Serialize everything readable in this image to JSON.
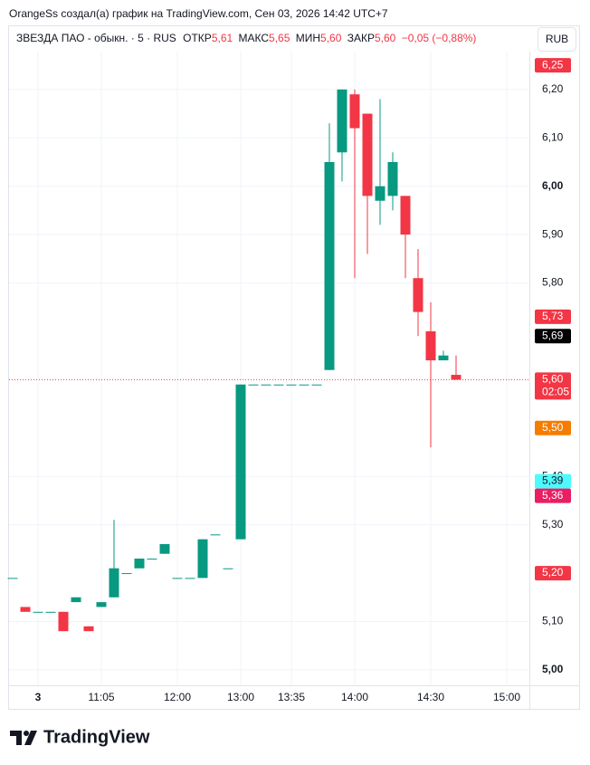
{
  "header": {
    "text": "OrangeSs создал(а) график на TradingView.com, Сен 03, 2026 14:42 UTC+7"
  },
  "legend": {
    "symbol": "ЗВЕЗДА ПАО - обыкн. · 5 · RUS",
    "open_label": "ОТКР",
    "open": "5,61",
    "high_label": "МАКС",
    "high": "5,65",
    "low_label": "МИН",
    "low": "5,60",
    "close_label": "ЗАКР",
    "close": "5,60",
    "change": "−0,05 (−0,88%)"
  },
  "currency": "RUB",
  "footer": {
    "logo": "TradingView"
  },
  "chart_data": {
    "type": "candlestick",
    "up_color": "#089981",
    "down_color": "#f23645",
    "open": [
      5.19,
      5.13,
      5.12,
      5.12,
      5.12,
      5.14,
      5.09,
      5.13,
      5.15,
      5.2,
      5.21,
      5.23,
      5.24,
      5.19,
      5.19,
      5.19,
      5.28,
      5.21,
      5.27,
      5.59,
      5.59,
      5.59,
      5.59,
      5.59,
      5.59,
      5.62,
      6.07,
      6.19,
      6.15,
      5.97,
      5.98,
      5.98,
      5.81,
      5.7,
      5.64,
      5.61
    ],
    "high": [
      5.19,
      5.13,
      5.12,
      5.12,
      5.12,
      5.15,
      5.09,
      5.14,
      5.31,
      5.2,
      5.23,
      5.23,
      5.26,
      5.19,
      5.19,
      5.27,
      5.28,
      5.21,
      5.59,
      5.59,
      5.59,
      5.59,
      5.59,
      5.59,
      5.59,
      6.13,
      6.2,
      6.2,
      6.15,
      6.18,
      6.07,
      5.98,
      5.87,
      5.76,
      5.66,
      5.65
    ],
    "low": [
      5.19,
      5.12,
      5.12,
      5.12,
      5.08,
      5.14,
      5.08,
      5.13,
      5.15,
      5.2,
      5.21,
      5.23,
      5.24,
      5.19,
      5.19,
      5.19,
      5.28,
      5.21,
      5.27,
      5.59,
      5.59,
      5.59,
      5.59,
      5.59,
      5.59,
      5.62,
      6.01,
      5.81,
      5.86,
      5.92,
      5.95,
      5.81,
      5.69,
      5.46,
      5.64,
      5.6
    ],
    "close": [
      5.19,
      5.12,
      5.12,
      5.12,
      5.08,
      5.15,
      5.08,
      5.14,
      5.21,
      5.2,
      5.23,
      5.23,
      5.26,
      5.19,
      5.19,
      5.27,
      5.28,
      5.21,
      5.59,
      5.59,
      5.59,
      5.59,
      5.59,
      5.59,
      5.59,
      6.05,
      6.2,
      6.12,
      5.98,
      6.0,
      6.05,
      5.9,
      5.74,
      5.64,
      5.65,
      5.6
    ],
    "xticks": [
      {
        "value": 2,
        "label": "3"
      },
      {
        "value": 7,
        "label": "11:05"
      },
      {
        "value": 13,
        "label": "12:00"
      },
      {
        "value": 18,
        "label": "13:00"
      },
      {
        "value": 22,
        "label": "13:35"
      },
      {
        "value": 27,
        "label": "14:00"
      },
      {
        "value": 33,
        "label": "14:30"
      },
      {
        "value": 39,
        "label": "15:00"
      }
    ],
    "ylim": [
      4.968,
      6.269
    ],
    "yticks": [
      {
        "value": 5.0,
        "label": "5,00"
      },
      {
        "value": 5.1,
        "label": "5,10"
      },
      {
        "value": 5.3,
        "label": "5,30"
      },
      {
        "value": 5.4,
        "label": "5,40"
      },
      {
        "value": 5.8,
        "label": "5,80"
      },
      {
        "value": 5.9,
        "label": "5,90"
      },
      {
        "value": 6.0,
        "label": "6,00"
      },
      {
        "value": 6.1,
        "label": "6,10"
      },
      {
        "value": 6.2,
        "label": "6,20"
      }
    ],
    "grid": true,
    "last_price": 5.6,
    "last_price_color": "#f23645",
    "price_labels": [
      {
        "value": 6.25,
        "label": "6,25",
        "color": "#f23645"
      },
      {
        "value": 5.73,
        "label": "5,73",
        "color": "#f23645"
      },
      {
        "value": 5.69,
        "label": "5,69",
        "color": "#000000"
      },
      {
        "value": 5.6,
        "label": "5,60",
        "color": "#f23645",
        "timer": "02:05"
      },
      {
        "value": 5.5,
        "label": "5,50",
        "color": "#f57c00"
      },
      {
        "value": 5.39,
        "label": "5,39",
        "color": "#4dfbff"
      },
      {
        "value": 5.36,
        "label": "5,36",
        "color": "#e91e63"
      },
      {
        "value": 5.2,
        "label": "5,20",
        "color": "#f23645"
      }
    ]
  }
}
